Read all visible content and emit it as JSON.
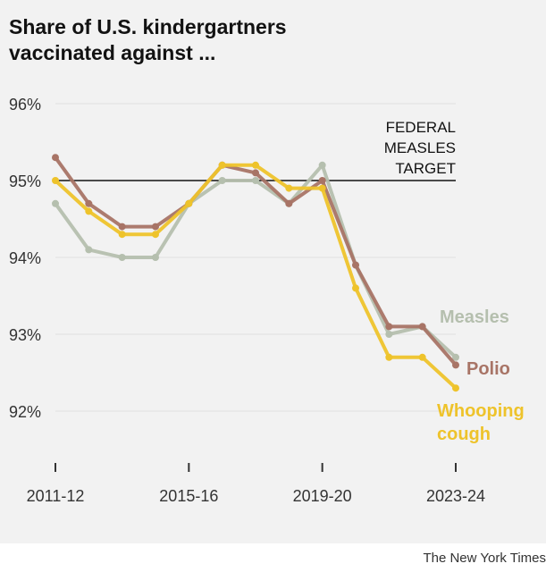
{
  "chart_data": {
    "type": "line",
    "title": "Share of U.S. kindergartners vaccinated against ...",
    "x": [
      "2011-12",
      "2012-13",
      "2013-14",
      "2014-15",
      "2015-16",
      "2016-17",
      "2017-18",
      "2018-19",
      "2019-20",
      "2020-21",
      "2021-22",
      "2022-23",
      "2023-24"
    ],
    "x_tick_labels": [
      "2011-12",
      "2015-16",
      "2019-20",
      "2023-24"
    ],
    "ylim": [
      91.3,
      96
    ],
    "y_ticks": [
      92,
      93,
      94,
      95,
      96
    ],
    "y_tick_labels": [
      "92%",
      "93%",
      "94%",
      "95%",
      "96%"
    ],
    "grid": true,
    "series": [
      {
        "name": "Measles",
        "color": "#b5bfae",
        "values": [
          94.7,
          94.1,
          94.0,
          94.0,
          94.7,
          95.0,
          95.0,
          94.7,
          95.2,
          93.9,
          93.0,
          93.1,
          92.7
        ]
      },
      {
        "name": "Polio",
        "color": "#a87466",
        "values": [
          95.3,
          94.7,
          94.4,
          94.4,
          94.7,
          95.2,
          95.1,
          94.7,
          95.0,
          93.9,
          93.1,
          93.1,
          92.6
        ]
      },
      {
        "name": "Whooping cough",
        "color": "#eec32b",
        "values": [
          95.0,
          94.6,
          94.3,
          94.3,
          94.7,
          95.2,
          95.2,
          94.9,
          94.9,
          93.6,
          92.7,
          92.7,
          92.3
        ]
      }
    ],
    "reference_line": {
      "value": 95,
      "label": [
        "FEDERAL",
        "MEASLES",
        "TARGET"
      ]
    }
  },
  "credit": "The New York Times"
}
